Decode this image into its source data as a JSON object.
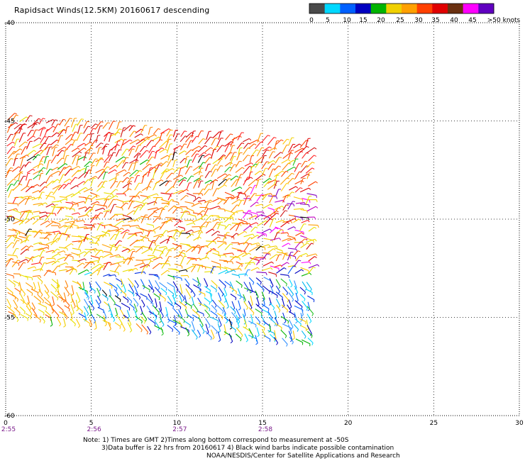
{
  "title": "Rapidsact Winds(12.5KM) 20160617 descending",
  "legend": {
    "labels": [
      "0",
      "5",
      "10",
      "15",
      "20",
      "25",
      "30",
      "35",
      "40",
      "45",
      ">50 knots"
    ],
    "colors": [
      "#4a4a4a",
      "#00d8ff",
      "#0060ff",
      "#0000c0",
      "#00b400",
      "#f0d000",
      "#ffa000",
      "#ff4000",
      "#e00000",
      "#6a3010",
      "#ff00ff",
      "#6000c0"
    ]
  },
  "axes": {
    "x_ticks": [
      "0",
      "5",
      "10",
      "15",
      "20",
      "25",
      "30"
    ],
    "y_ticks": [
      "-40",
      "-45",
      "-50",
      "-55",
      "-60"
    ],
    "times": [
      "2:55",
      "2:56",
      "2:57",
      "2:58"
    ]
  },
  "notes": {
    "line1": "Note: 1) Times are GMT 2)Times along bottom correspond to measurement at -50S",
    "line2": "3)Data buffer is 22 hrs from 20160617 4) Black wind barbs indicate possible contamination",
    "line3": "NOAA/NESDIS/Center for Satellite Applications and Research"
  }
}
